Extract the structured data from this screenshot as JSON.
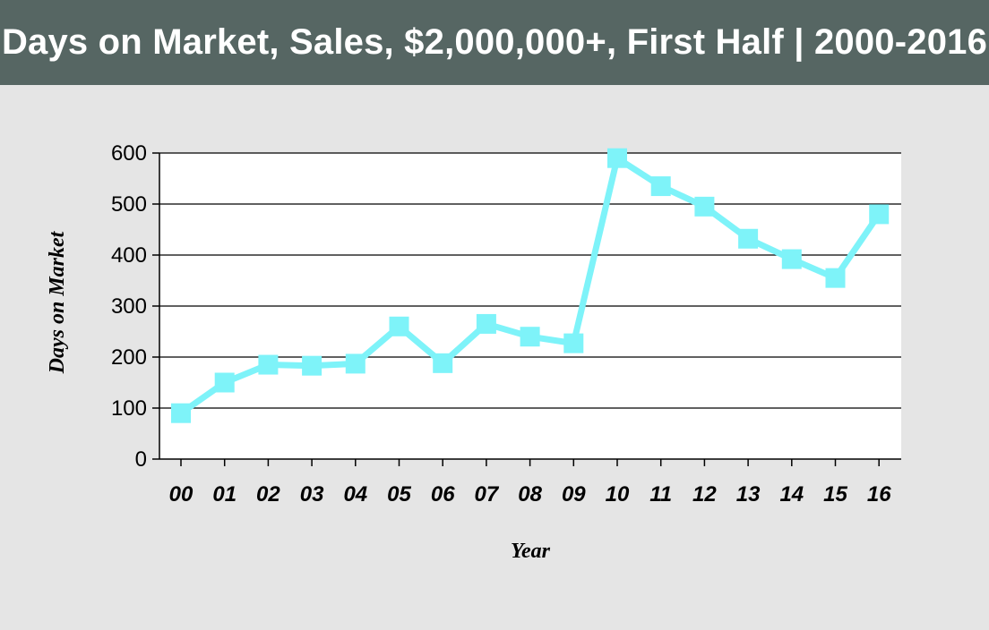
{
  "header": {
    "title": "Days on Market, Sales, $2,000,000+, First Half | 2000-2016"
  },
  "colors": {
    "series": "#7ef3f9",
    "header_bg": "#566663",
    "page_bg": "#e5e5e5",
    "plot_bg": "#ffffff"
  },
  "chart_data": {
    "type": "line",
    "title": "Days on Market, Sales, $2,000,000+, First Half | 2000-2016",
    "xlabel": "Year",
    "ylabel": "Days on Market",
    "categories": [
      "00",
      "01",
      "02",
      "03",
      "04",
      "05",
      "06",
      "07",
      "08",
      "09",
      "10",
      "11",
      "12",
      "13",
      "14",
      "15",
      "16"
    ],
    "series": [
      {
        "values": [
          90,
          150,
          185,
          183,
          187,
          260,
          188,
          265,
          240,
          227,
          590,
          535,
          495,
          432,
          392,
          355,
          480
        ]
      }
    ],
    "ylim": [
      0,
      600
    ],
    "yticks": [
      0,
      100,
      200,
      300,
      400,
      500,
      600
    ],
    "grid": true,
    "legend": "none"
  }
}
